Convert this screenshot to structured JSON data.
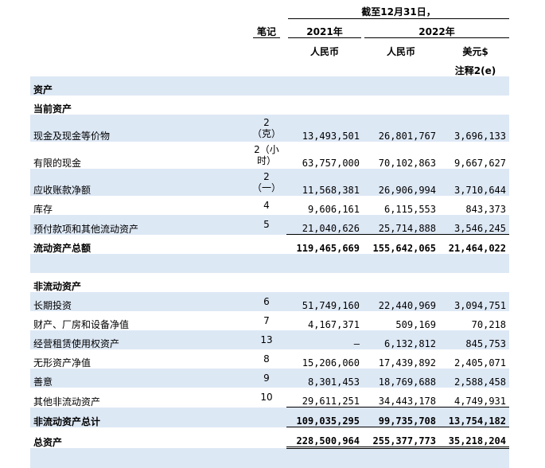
{
  "header": {
    "period": "截至12月31日，",
    "note_col": "笔记",
    "year_2021": "2021年",
    "year_2022": "2022年",
    "cur_rmb_2021": "人民币",
    "cur_rmb_2022": "人民币",
    "cur_usd": "美元$",
    "usd_note": "注释2(e)"
  },
  "rows": [
    {
      "label": "资产",
      "note": "",
      "v2021": "",
      "v2022": "",
      "usd": ""
    },
    {
      "label": "当前资产",
      "note": "",
      "v2021": "",
      "v2022": "",
      "usd": ""
    },
    {
      "label": "现金及现金等价物",
      "note": "2\n（克）",
      "v2021": "13,493,501",
      "v2022": "26,801,767",
      "usd": "3,696,133"
    },
    {
      "label": "有限的现金",
      "note": "2（小\n时）",
      "v2021": "63,757,000",
      "v2022": "70,102,863",
      "usd": "9,667,627"
    },
    {
      "label": "应收账款净额",
      "note": "2\n（一）",
      "v2021": "11,568,381",
      "v2022": "26,906,994",
      "usd": "3,710,644"
    },
    {
      "label": "库存",
      "note": "4",
      "v2021": "9,606,161",
      "v2022": "6,115,553",
      "usd": "843,373"
    },
    {
      "label": "预付款项和其他流动资产",
      "note": "5",
      "v2021": "21,040,626",
      "v2022": "25,714,888",
      "usd": "3,546,245"
    },
    {
      "label": "流动资产总额",
      "note": "",
      "v2021": "119,465,669",
      "v2022": "155,642,065",
      "usd": "21,464,022"
    },
    {
      "label": "非流动资产",
      "note": "",
      "v2021": "",
      "v2022": "",
      "usd": ""
    },
    {
      "label": "长期投资",
      "note": "6",
      "v2021": "51,749,160",
      "v2022": "22,440,969",
      "usd": "3,094,751"
    },
    {
      "label": "财产、厂房和设备净值",
      "note": "7",
      "v2021": "4,167,371",
      "v2022": "509,169",
      "usd": "70,218"
    },
    {
      "label": "经营租赁使用权资产",
      "note": "13",
      "v2021": "—",
      "v2022": "6,132,812",
      "usd": "845,753"
    },
    {
      "label": "无形资产净值",
      "note": "8",
      "v2021": "15,206,060",
      "v2022": "17,439,892",
      "usd": "2,405,071"
    },
    {
      "label": "善意",
      "note": "9",
      "v2021": "8,301,453",
      "v2022": "18,769,688",
      "usd": "2,588,458"
    },
    {
      "label": "其他非流动资产",
      "note": "10",
      "v2021": "29,611,251",
      "v2022": "34,443,178",
      "usd": "4,749,931"
    },
    {
      "label": "非流动资产总计",
      "note": "",
      "v2021": "109,035,295",
      "v2022": "99,735,708",
      "usd": "13,754,182"
    },
    {
      "label": "总资产",
      "note": "",
      "v2021": "228,500,964",
      "v2022": "255,377,773",
      "usd": "35,218,204"
    }
  ]
}
